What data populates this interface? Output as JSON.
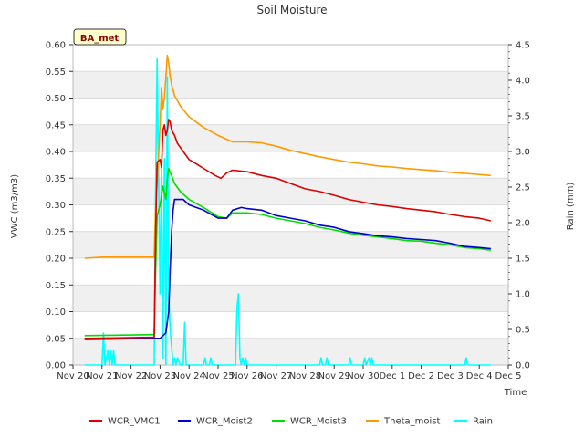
{
  "chart_data": {
    "type": "line",
    "title": "Soil Moisture",
    "xlabel": "Time",
    "ylabel": "VWC (m3/m3)",
    "ylabel_right": "Rain (mm)",
    "site_badge": "BA_met",
    "xlim": [
      0,
      15
    ],
    "ylim": [
      0.0,
      0.6
    ],
    "ylim_right": [
      0.0,
      4.5
    ],
    "x_ticks": [
      0,
      1,
      2,
      3,
      4,
      5,
      6,
      7,
      8,
      9,
      10,
      11,
      12,
      13,
      14,
      15
    ],
    "x_tick_labels": [
      "Nov 20",
      "Nov 21",
      "Nov 22",
      "Nov 23",
      "Nov 24",
      "Nov 25",
      "Nov 26",
      "Nov 27",
      "Nov 28",
      "Nov 29",
      "Nov 30",
      "Dec 1",
      "Dec 2",
      "Dec 3",
      "Dec 4",
      "Dec 5"
    ],
    "y_ticks": [
      0.0,
      0.05,
      0.1,
      0.15,
      0.2,
      0.25,
      0.3,
      0.35,
      0.4,
      0.45,
      0.5,
      0.55,
      0.6
    ],
    "y_tick_labels": [
      "0.00",
      "0.05",
      "0.10",
      "0.15",
      "0.20",
      "0.25",
      "0.30",
      "0.35",
      "0.40",
      "0.45",
      "0.50",
      "0.55",
      "0.60"
    ],
    "y2_ticks": [
      0.0,
      0.5,
      1.0,
      1.5,
      2.0,
      2.5,
      3.0,
      3.5,
      4.0,
      4.5
    ],
    "y2_tick_labels": [
      "0.0",
      "0.5",
      "1.0",
      "1.5",
      "2.0",
      "2.5",
      "3.0",
      "3.5",
      "4.0",
      "4.5"
    ],
    "series": [
      {
        "name": "WCR_VMC1",
        "color": "#dd0000",
        "axis": "left",
        "x": [
          0.4,
          2.8,
          2.85,
          2.9,
          3.0,
          3.05,
          3.1,
          3.15,
          3.2,
          3.25,
          3.3,
          3.35,
          3.4,
          3.5,
          3.6,
          3.8,
          4.0,
          4.3,
          4.6,
          4.9,
          5.1,
          5.3,
          5.5,
          6.0,
          6.5,
          7.0,
          7.5,
          8.0,
          8.5,
          9.0,
          9.5,
          10.0,
          10.5,
          11.0,
          11.5,
          12.0,
          12.5,
          13.0,
          13.5,
          14.0,
          14.4
        ],
        "y": [
          0.05,
          0.052,
          0.25,
          0.38,
          0.385,
          0.37,
          0.44,
          0.45,
          0.43,
          0.44,
          0.46,
          0.455,
          0.44,
          0.43,
          0.415,
          0.4,
          0.385,
          0.375,
          0.365,
          0.355,
          0.35,
          0.36,
          0.365,
          0.362,
          0.355,
          0.35,
          0.34,
          0.33,
          0.325,
          0.318,
          0.31,
          0.305,
          0.3,
          0.297,
          0.293,
          0.29,
          0.287,
          0.282,
          0.278,
          0.275,
          0.27
        ]
      },
      {
        "name": "WCR_Moist2",
        "color": "#0000cc",
        "axis": "left",
        "x": [
          0.4,
          2.8,
          3.0,
          3.2,
          3.3,
          3.35,
          3.4,
          3.45,
          3.5,
          3.6,
          3.8,
          4.0,
          4.5,
          5.0,
          5.3,
          5.5,
          5.8,
          6.0,
          6.5,
          7.0,
          7.5,
          8.0,
          8.5,
          9.0,
          9.5,
          10.0,
          10.5,
          11.0,
          11.5,
          12.0,
          12.5,
          13.0,
          13.5,
          14.0,
          14.4
        ],
        "y": [
          0.048,
          0.05,
          0.05,
          0.06,
          0.1,
          0.18,
          0.25,
          0.29,
          0.31,
          0.31,
          0.31,
          0.3,
          0.29,
          0.275,
          0.275,
          0.29,
          0.295,
          0.293,
          0.29,
          0.28,
          0.275,
          0.27,
          0.262,
          0.258,
          0.25,
          0.246,
          0.242,
          0.24,
          0.237,
          0.235,
          0.233,
          0.228,
          0.222,
          0.22,
          0.218
        ]
      },
      {
        "name": "WCR_Moist3",
        "color": "#00dd00",
        "axis": "left",
        "x": [
          0.4,
          2.8,
          2.85,
          2.9,
          3.0,
          3.1,
          3.2,
          3.25,
          3.3,
          3.35,
          3.4,
          3.5,
          3.7,
          4.0,
          4.5,
          5.0,
          5.3,
          5.5,
          5.8,
          6.0,
          6.5,
          7.0,
          7.5,
          8.0,
          8.5,
          9.0,
          9.5,
          10.0,
          10.5,
          11.0,
          11.5,
          12.0,
          12.5,
          13.0,
          13.5,
          14.0,
          14.4
        ],
        "y": [
          0.055,
          0.057,
          0.18,
          0.28,
          0.3,
          0.335,
          0.31,
          0.35,
          0.368,
          0.36,
          0.355,
          0.34,
          0.325,
          0.31,
          0.295,
          0.278,
          0.275,
          0.285,
          0.285,
          0.285,
          0.282,
          0.275,
          0.27,
          0.265,
          0.258,
          0.253,
          0.247,
          0.243,
          0.24,
          0.237,
          0.233,
          0.232,
          0.228,
          0.225,
          0.22,
          0.218,
          0.215
        ]
      },
      {
        "name": "Theta_moist",
        "color": "#ff9900",
        "axis": "left",
        "x": [
          0.4,
          1.0,
          2.8,
          2.85,
          2.9,
          3.0,
          3.05,
          3.1,
          3.15,
          3.2,
          3.25,
          3.3,
          3.35,
          3.4,
          3.5,
          3.7,
          4.0,
          4.5,
          5.0,
          5.5,
          6.0,
          6.5,
          7.0,
          7.5,
          8.0,
          8.5,
          9.0,
          9.5,
          10.0,
          10.5,
          11.0,
          11.5,
          12.0,
          12.5,
          13.0,
          13.5,
          14.0,
          14.4
        ],
        "y": [
          0.2,
          0.202,
          0.202,
          0.3,
          0.34,
          0.45,
          0.52,
          0.48,
          0.5,
          0.54,
          0.58,
          0.565,
          0.54,
          0.525,
          0.505,
          0.485,
          0.465,
          0.445,
          0.43,
          0.418,
          0.418,
          0.416,
          0.41,
          0.402,
          0.396,
          0.39,
          0.385,
          0.38,
          0.377,
          0.373,
          0.371,
          0.368,
          0.366,
          0.364,
          0.361,
          0.359,
          0.357,
          0.355
        ]
      },
      {
        "name": "Rain",
        "color": "#00ffff",
        "axis": "right",
        "x": [
          0.4,
          1.0,
          1.05,
          1.1,
          1.2,
          1.25,
          1.3,
          1.35,
          1.4,
          1.45,
          1.5,
          1.6,
          2.8,
          2.85,
          2.9,
          3.0,
          3.05,
          3.1,
          3.15,
          3.2,
          3.25,
          3.3,
          3.35,
          3.4,
          3.45,
          3.5,
          3.55,
          3.6,
          3.7,
          3.8,
          3.85,
          3.9,
          4.0,
          4.5,
          4.55,
          4.6,
          4.7,
          4.75,
          4.8,
          5.6,
          5.65,
          5.7,
          5.75,
          5.8,
          5.85,
          5.9,
          5.95,
          6.0,
          6.05,
          6.1,
          8.5,
          8.55,
          8.6,
          8.7,
          8.75,
          8.8,
          9.5,
          9.55,
          9.6,
          10.0,
          10.05,
          10.1,
          10.2,
          10.25,
          10.3,
          10.35,
          10.4,
          13.5,
          13.55,
          13.6,
          14.4
        ],
        "y": [
          0,
          0,
          0.45,
          0,
          0.2,
          0,
          0.2,
          0,
          0.2,
          0,
          0,
          0,
          0,
          2.5,
          4.3,
          1.0,
          2.8,
          0.1,
          2.9,
          0,
          4.05,
          1.0,
          0.5,
          0.25,
          0,
          0.1,
          0,
          0.1,
          0,
          0,
          0.6,
          0,
          0,
          0,
          0.1,
          0,
          0,
          0.1,
          0,
          0,
          0.8,
          1.0,
          0.1,
          0,
          0.1,
          0,
          0.1,
          0,
          0,
          0,
          0,
          0.1,
          0,
          0,
          0.1,
          0,
          0,
          0.1,
          0,
          0,
          0.1,
          0,
          0.1,
          0,
          0.1,
          0,
          0,
          0,
          0.1,
          0,
          0
        ]
      }
    ]
  }
}
